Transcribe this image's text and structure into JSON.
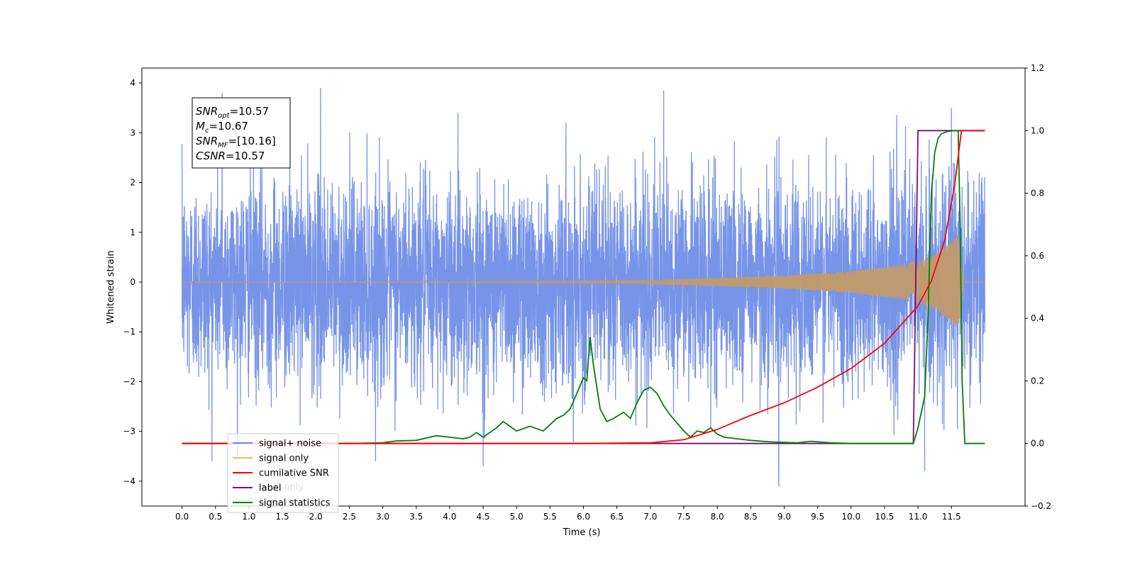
{
  "chart_data": {
    "type": "line",
    "title": "",
    "xlabel": "Time (s)",
    "ylabel": "Whitened strain",
    "y2label": "",
    "xlim": [
      -0.6,
      12.6
    ],
    "ylim": [
      -4.5,
      4.3
    ],
    "y2lim": [
      -0.2,
      1.2
    ],
    "xticks": [
      "0.0",
      "0.5",
      "1.0",
      "1.5",
      "2.0",
      "2.5",
      "3.0",
      "3.5",
      "4.0",
      "4.5",
      "5.0",
      "5.5",
      "6.0",
      "6.5",
      "7.0",
      "7.5",
      "8.0",
      "8.5",
      "9.0",
      "9.5",
      "10.0",
      "10.5",
      "11.0",
      "11.5"
    ],
    "yticks": [
      "4",
      "3",
      "2",
      "1",
      "0",
      "−1",
      "−2",
      "−3",
      "−4"
    ],
    "y2ticks": [
      "1.2",
      "1.0",
      "0.8",
      "0.6",
      "0.4",
      "0.2",
      "0.0",
      "−0.2"
    ],
    "grid": false,
    "legend_position": "lower-left",
    "annotation": {
      "lines": [
        {
          "var": "SNR",
          "sub": "opt",
          "value": "=10.57"
        },
        {
          "var": "M",
          "sub": "c",
          "value": "=10.67"
        },
        {
          "var": "SNR",
          "sub": "MF",
          "value": "=[10.16]"
        },
        {
          "var": "CSNR",
          "sub": "",
          "value": "=10.57"
        }
      ]
    },
    "legend": [
      {
        "label": "signal+ noise",
        "color": "#6b8be6"
      },
      {
        "label": "signal only",
        "color": "#f5b94a"
      },
      {
        "label": "cumilative SNR",
        "color": "#ff0000"
      },
      {
        "label": "label",
        "color": "#7b0d7b"
      },
      {
        "label": "signal statistics",
        "color": "#008000"
      }
    ],
    "hidden_legend_text": [
      "label only",
      "label only"
    ],
    "series": [
      {
        "name": "signal+ noise",
        "axis": "left",
        "color": "#6b8be6",
        "x_range": [
          0.0,
          12.0
        ],
        "envelope_sigma": 1.0,
        "notable_peaks": [
          [
            0.6,
            3.8
          ],
          [
            2.07,
            3.9
          ],
          [
            7.2,
            3.85
          ],
          [
            11.5,
            3.5
          ],
          [
            4.5,
            -3.7
          ],
          [
            8.92,
            -4.1
          ],
          [
            11.1,
            -3.8
          ]
        ]
      },
      {
        "name": "signal only",
        "axis": "left",
        "color": "#c29a6a",
        "x_range": [
          0.0,
          12.0
        ],
        "envelope": [
          [
            0.0,
            0.0
          ],
          [
            7.0,
            0.03
          ],
          [
            8.0,
            0.08
          ],
          [
            9.0,
            0.13
          ],
          [
            10.0,
            0.22
          ],
          [
            10.5,
            0.3
          ],
          [
            11.0,
            0.42
          ],
          [
            11.3,
            0.58
          ],
          [
            11.5,
            0.82
          ],
          [
            11.6,
            0.95
          ],
          [
            11.68,
            0.0
          ],
          [
            12.0,
            0.0
          ]
        ]
      },
      {
        "name": "cumilative SNR",
        "axis": "right",
        "color": "#ff0000",
        "x": [
          0.0,
          6.0,
          7.0,
          7.5,
          8.0,
          8.5,
          9.0,
          9.5,
          10.0,
          10.5,
          11.0,
          11.2,
          11.4,
          11.55,
          11.62,
          11.65,
          11.7,
          11.8,
          12.0
        ],
        "values": [
          0.0,
          0.0,
          0.002,
          0.012,
          0.045,
          0.09,
          0.13,
          0.18,
          0.24,
          0.32,
          0.44,
          0.52,
          0.65,
          0.83,
          0.95,
          1.0,
          1.0,
          1.0,
          1.0
        ]
      },
      {
        "name": "label",
        "axis": "right",
        "color": "#7b0d7b",
        "x": [
          0.0,
          10.93,
          11.0,
          11.7,
          11.72,
          12.0
        ],
        "values": [
          0.0,
          0.0,
          1.0,
          1.0,
          1.0,
          1.0
        ]
      },
      {
        "name": "signal statistics",
        "axis": "right",
        "color": "#008000",
        "x": [
          0.0,
          2.5,
          3.0,
          3.2,
          3.5,
          3.8,
          4.0,
          4.2,
          4.3,
          4.4,
          4.5,
          4.7,
          4.8,
          5.0,
          5.2,
          5.4,
          5.5,
          5.6,
          5.7,
          5.8,
          5.9,
          6.0,
          6.05,
          6.1,
          6.15,
          6.25,
          6.35,
          6.45,
          6.6,
          6.7,
          6.8,
          6.9,
          7.0,
          7.1,
          7.2,
          7.3,
          7.5,
          7.6,
          7.7,
          7.8,
          7.9,
          8.0,
          8.1,
          8.3,
          8.5,
          8.8,
          9.2,
          9.4,
          9.7,
          10.0,
          10.5,
          10.93,
          11.0,
          11.1,
          11.15,
          11.2,
          11.25,
          11.3,
          11.35,
          11.45,
          11.55,
          11.6,
          11.63,
          11.66,
          11.7,
          12.0
        ],
        "values": [
          0.0,
          0.0,
          0.002,
          0.008,
          0.01,
          0.025,
          0.02,
          0.015,
          0.02,
          0.035,
          0.02,
          0.05,
          0.07,
          0.04,
          0.055,
          0.04,
          0.06,
          0.08,
          0.09,
          0.11,
          0.16,
          0.21,
          0.2,
          0.34,
          0.25,
          0.11,
          0.07,
          0.08,
          0.1,
          0.08,
          0.13,
          0.17,
          0.18,
          0.16,
          0.12,
          0.09,
          0.04,
          0.02,
          0.04,
          0.035,
          0.05,
          0.03,
          0.02,
          0.015,
          0.01,
          0.005,
          0.002,
          0.007,
          0.002,
          0.0,
          0.0,
          0.0,
          0.05,
          0.15,
          0.4,
          0.8,
          0.93,
          0.975,
          0.99,
          0.998,
          1.0,
          1.0,
          0.7,
          0.2,
          0.0,
          0.0
        ]
      }
    ]
  }
}
